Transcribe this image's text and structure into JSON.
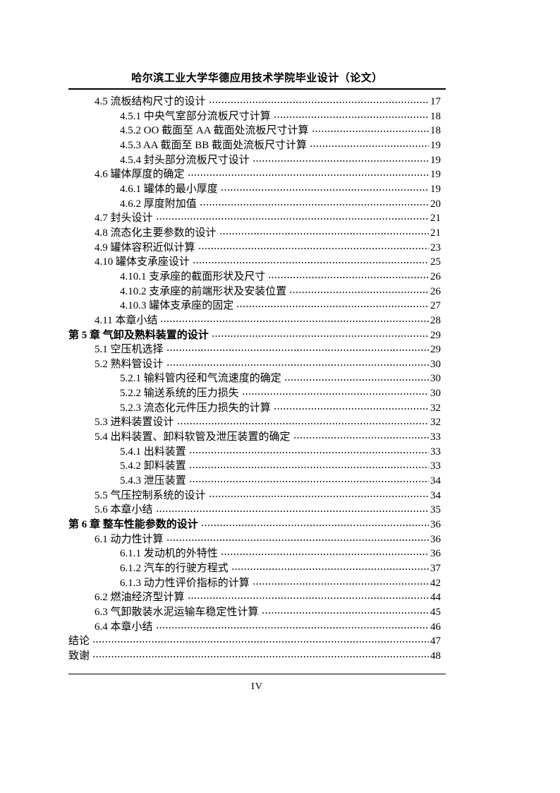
{
  "header": {
    "title": "哈尔滨工业大学华德应用技术学院毕业设计（论文）"
  },
  "toc": {
    "entries": [
      {
        "level": 1,
        "bold": false,
        "label": "4.5  流板结构尺寸的设计",
        "page": "17"
      },
      {
        "level": 2,
        "bold": false,
        "label": "4.5.1  中央气室部分流板尺寸计算",
        "page": "18"
      },
      {
        "level": 2,
        "bold": false,
        "label": "4.5.2 OO 截面至 AA 截面处流板尺寸计算",
        "page": "18"
      },
      {
        "level": 2,
        "bold": false,
        "label": "4.5.3 AA 截面至 BB 截面处流板尺寸计算",
        "page": "19"
      },
      {
        "level": 2,
        "bold": false,
        "label": "4.5.4  封头部分流板尺寸设计",
        "page": "19"
      },
      {
        "level": 1,
        "bold": false,
        "label": "4.6  罐体厚度的确定",
        "page": "19"
      },
      {
        "level": 2,
        "bold": false,
        "label": "4.6.1  罐体的最小厚度",
        "page": "19"
      },
      {
        "level": 2,
        "bold": false,
        "label": "4.6.2  厚度附加值",
        "page": "20"
      },
      {
        "level": 1,
        "bold": false,
        "label": "4.7  封头设计",
        "page": "21"
      },
      {
        "level": 1,
        "bold": false,
        "label": "4.8  流态化主要参数的设计",
        "page": "21"
      },
      {
        "level": 1,
        "bold": false,
        "label": "4.9  罐体容积近似计算",
        "page": "23"
      },
      {
        "level": 1,
        "bold": false,
        "label": "4.10  罐体支承座设计",
        "page": "25"
      },
      {
        "level": 2,
        "bold": false,
        "label": "4.10.1  支承座的截面形状及尺寸",
        "page": "26"
      },
      {
        "level": 2,
        "bold": false,
        "label": "4.10.2  支承座的前端形状及安装位置",
        "page": "26"
      },
      {
        "level": 2,
        "bold": false,
        "label": "4.10.3  罐体支承座的固定",
        "page": "27"
      },
      {
        "level": 1,
        "bold": false,
        "label": "4.11  本章小结",
        "page": "28"
      },
      {
        "level": 0,
        "bold": true,
        "label": "第 5 章  气卸及熟料装置的设计",
        "page": "29"
      },
      {
        "level": 1,
        "bold": false,
        "label": "5.1  空压机选择",
        "page": "29"
      },
      {
        "level": 1,
        "bold": false,
        "label": "5.2  熟料管设计",
        "page": "30"
      },
      {
        "level": 2,
        "bold": false,
        "label": "5.2.1  输料管内径和气流速度的确定",
        "page": "30"
      },
      {
        "level": 2,
        "bold": false,
        "label": "5.2.2  输送系统的压力损失",
        "page": "30"
      },
      {
        "level": 2,
        "bold": false,
        "label": "5.2.3  流态化元件压力损失的计算",
        "page": "32"
      },
      {
        "level": 1,
        "bold": false,
        "label": "5.3  进料装置设计",
        "page": "32"
      },
      {
        "level": 1,
        "bold": false,
        "label": "5.4  出料装置、卸料软管及泄压装置的确定",
        "page": "33"
      },
      {
        "level": 2,
        "bold": false,
        "label": "5.4.1  出料装置",
        "page": "33"
      },
      {
        "level": 2,
        "bold": false,
        "label": "5.4.2  卸料装置",
        "page": "33"
      },
      {
        "level": 2,
        "bold": false,
        "label": "5.4.3  泄压装置",
        "page": "34"
      },
      {
        "level": 1,
        "bold": false,
        "label": "5.5  气压控制系统的设计",
        "page": "34"
      },
      {
        "level": 1,
        "bold": false,
        "label": "5.6  本章小结",
        "page": "35"
      },
      {
        "level": 0,
        "bold": true,
        "label": "第 6 章  整车性能参数的设计",
        "page": "36"
      },
      {
        "level": 1,
        "bold": false,
        "label": "6.1  动力性计算",
        "page": "36"
      },
      {
        "level": 2,
        "bold": false,
        "label": "6.1.1  发动机的外特性",
        "page": "36"
      },
      {
        "level": 2,
        "bold": false,
        "label": "6.1.2  汽车的行驶方程式",
        "page": "37"
      },
      {
        "level": 2,
        "bold": false,
        "label": "6.1.3  动力性评价指标的计算",
        "page": "42"
      },
      {
        "level": 1,
        "bold": false,
        "label": "6.2  燃油经济型计算",
        "page": "44"
      },
      {
        "level": 1,
        "bold": false,
        "label": "6.3  气卸散装水泥运输车稳定性计算",
        "page": "45"
      },
      {
        "level": 1,
        "bold": false,
        "label": "6.4  本章小结",
        "page": "46"
      },
      {
        "level": 0,
        "bold": false,
        "label": "结论",
        "page": "47"
      },
      {
        "level": 0,
        "bold": false,
        "label": "致谢",
        "page": "48"
      }
    ]
  },
  "footer": {
    "page_number": "IV"
  }
}
